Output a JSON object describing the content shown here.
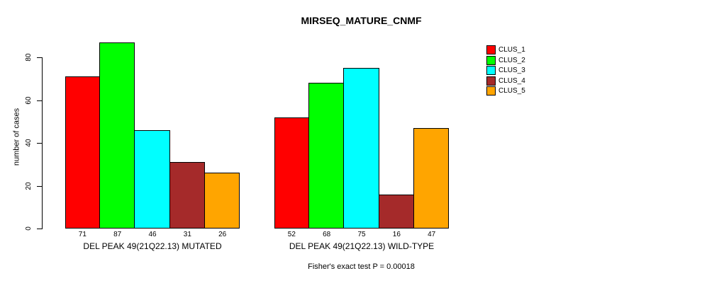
{
  "chart_data": {
    "type": "bar",
    "title": "MIRSEQ_MATURE_CNMF",
    "ylabel": "number of cases",
    "xlabel": "",
    "categories": [
      "DEL PEAK 49(21Q22.13) MUTATED",
      "DEL PEAK 49(21Q22.13) WILD-TYPE"
    ],
    "series": [
      {
        "name": "CLUS_1",
        "color": "#FF0000",
        "values": [
          71,
          52
        ]
      },
      {
        "name": "CLUS_2",
        "color": "#00FF00",
        "values": [
          87,
          68
        ]
      },
      {
        "name": "CLUS_3",
        "color": "#00FFFF",
        "values": [
          46,
          75
        ]
      },
      {
        "name": "CLUS_4",
        "color": "#A52A2A",
        "values": [
          31,
          16
        ]
      },
      {
        "name": "CLUS_5",
        "color": "#FFA500",
        "values": [
          26,
          47
        ]
      }
    ],
    "yticks": [
      0,
      20,
      40,
      60,
      80
    ],
    "ylim": [
      0,
      87
    ],
    "bar_value_labels": true,
    "annotation": "Fisher's exact test P = 0.00018",
    "legend_position": "top-right",
    "grid": false,
    "axis_color": "#000000",
    "background_color": "#FFFFFF"
  }
}
